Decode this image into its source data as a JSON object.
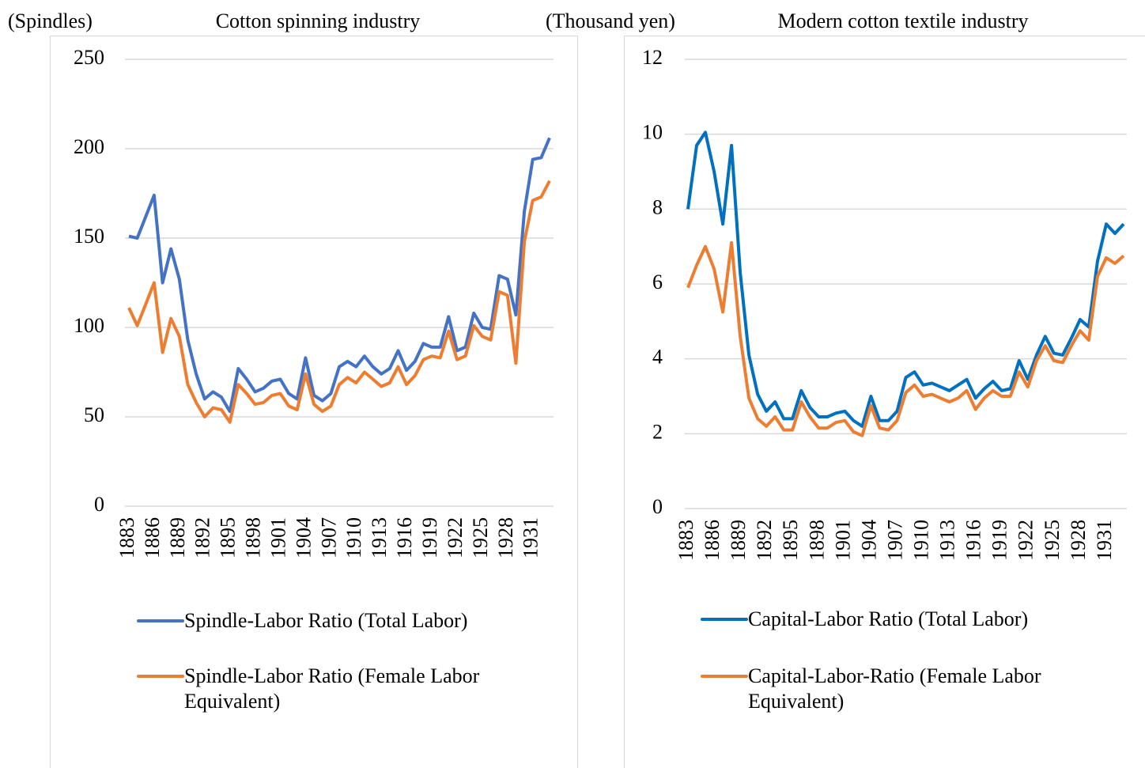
{
  "chart_data": [
    {
      "type": "line",
      "title": "Cotton spinning industry",
      "y_label": "(Spindles)",
      "categories": [
        "1883",
        null,
        null,
        "1886",
        null,
        null,
        "1889",
        null,
        null,
        "1892",
        null,
        null,
        "1895",
        null,
        null,
        "1898",
        null,
        null,
        "1901",
        null,
        null,
        "1904",
        null,
        null,
        "1907",
        null,
        null,
        "1910",
        null,
        null,
        "1913",
        null,
        null,
        "1916",
        null,
        null,
        "1919",
        null,
        null,
        "1922",
        null,
        null,
        "1925",
        null,
        null,
        "1928",
        null,
        null,
        "1931",
        null,
        null
      ],
      "series": [
        {
          "name": "Spindle-Labor Ratio (Total Labor)",
          "color": "#4472c4",
          "values": [
            151,
            150,
            162,
            174,
            125,
            144,
            127,
            93,
            74,
            60,
            64,
            61,
            53,
            77,
            71,
            64,
            66,
            70,
            71,
            63,
            60,
            83,
            62,
            59,
            63,
            78,
            81,
            78,
            84,
            78,
            74,
            77,
            87,
            76,
            81,
            91,
            89,
            89,
            106,
            87,
            89,
            108,
            100,
            99,
            129,
            127,
            107,
            165,
            194,
            195,
            206
          ]
        },
        {
          "name": "Spindle-Labor Ratio (Female Labor Equivalent)",
          "color": "#ed7d31",
          "values": [
            111,
            101,
            113,
            125,
            86,
            105,
            95,
            68,
            58,
            50,
            55,
            54,
            47,
            68,
            63,
            57,
            58,
            62,
            63,
            56,
            54,
            74,
            57,
            53,
            56,
            68,
            72,
            69,
            75,
            71,
            67,
            69,
            78,
            68,
            73,
            82,
            84,
            83,
            98,
            82,
            84,
            101,
            95,
            93,
            120,
            118,
            80,
            148,
            171,
            173,
            182
          ]
        }
      ],
      "ylim": [
        0,
        250
      ],
      "yticks": [
        0,
        50,
        100,
        150,
        200,
        250
      ],
      "grid": true
    },
    {
      "type": "line",
      "title": "Modern cotton textile industry",
      "y_label": "(Thousand yen)",
      "categories": [
        "1883",
        null,
        null,
        "1886",
        null,
        null,
        "1889",
        null,
        null,
        "1892",
        null,
        null,
        "1895",
        null,
        null,
        "1898",
        null,
        null,
        "1901",
        null,
        null,
        "1904",
        null,
        null,
        "1907",
        null,
        null,
        "1910",
        null,
        null,
        "1913",
        null,
        null,
        "1916",
        null,
        null,
        "1919",
        null,
        null,
        "1922",
        null,
        null,
        "1925",
        null,
        null,
        "1928",
        null,
        null,
        "1931",
        null,
        null
      ],
      "series": [
        {
          "name": "Capital-Labor Ratio (Total Labor)",
          "color": "#0070c0",
          "values": [
            8.0,
            9.7,
            10.05,
            9.0,
            7.6,
            9.7,
            6.3,
            4.1,
            3.05,
            2.6,
            2.85,
            2.4,
            2.4,
            3.15,
            2.7,
            2.45,
            2.45,
            2.55,
            2.6,
            2.35,
            2.2,
            3.0,
            2.35,
            2.35,
            2.6,
            3.5,
            3.65,
            3.3,
            3.35,
            3.25,
            3.15,
            3.3,
            3.45,
            2.95,
            3.2,
            3.4,
            3.15,
            3.2,
            3.95,
            3.45,
            4.1,
            4.6,
            4.15,
            4.1,
            4.55,
            5.05,
            4.85,
            6.6,
            7.6,
            7.35,
            7.6
          ]
        },
        {
          "name": "Capital-Labor-Ratio (Female Labor Equivalent)",
          "color": "#ed7d31",
          "values": [
            5.9,
            6.5,
            7.0,
            6.4,
            5.25,
            7.1,
            4.6,
            2.95,
            2.4,
            2.2,
            2.45,
            2.1,
            2.1,
            2.85,
            2.45,
            2.15,
            2.15,
            2.3,
            2.35,
            2.05,
            1.95,
            2.75,
            2.15,
            2.1,
            2.35,
            3.1,
            3.3,
            3.0,
            3.05,
            2.95,
            2.85,
            2.95,
            3.15,
            2.65,
            2.95,
            3.15,
            3.0,
            3.0,
            3.65,
            3.25,
            3.95,
            4.35,
            3.95,
            3.9,
            4.35,
            4.75,
            4.5,
            6.2,
            6.7,
            6.55,
            6.75
          ]
        }
      ],
      "ylim": [
        0,
        12
      ],
      "yticks": [
        0,
        2,
        4,
        6,
        8,
        10,
        12
      ],
      "grid": true
    }
  ]
}
